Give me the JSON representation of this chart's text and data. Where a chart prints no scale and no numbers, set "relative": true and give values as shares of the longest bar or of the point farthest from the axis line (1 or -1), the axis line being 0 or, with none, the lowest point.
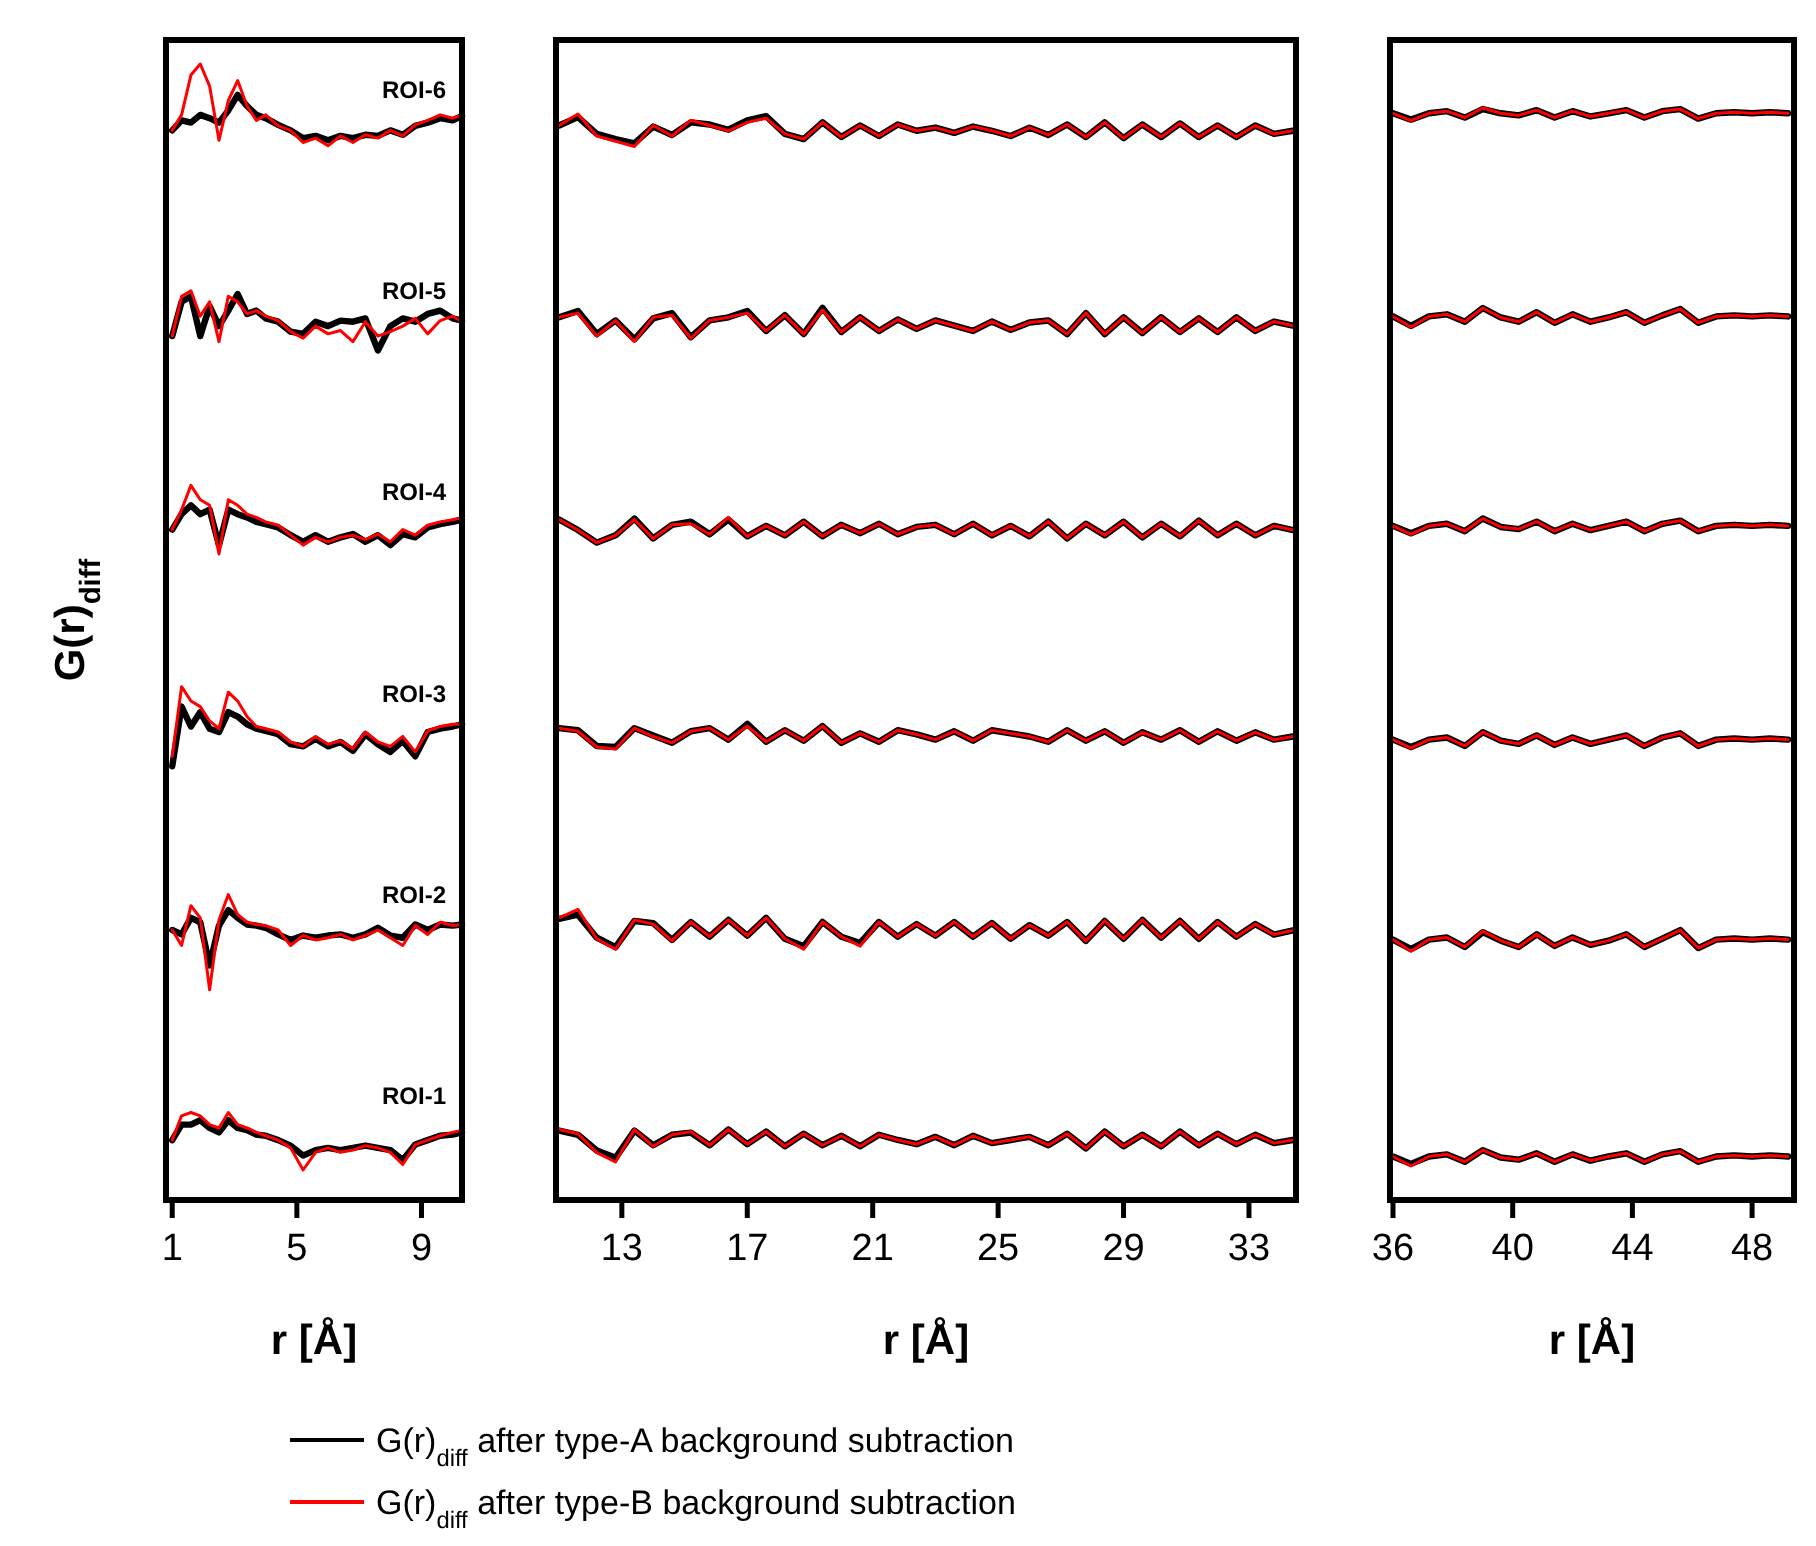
{
  "chart_data": [
    {
      "type": "line",
      "relative": true,
      "xlim": [
        0.8,
        10.3
      ],
      "xticks": [
        1,
        5,
        9
      ],
      "xlabel": "r [Å]",
      "ylabel": "G(r)$_{diff}$",
      "legend": "bottom",
      "x": [
        1,
        1.3,
        1.6,
        1.9,
        2.2,
        2.5,
        2.8,
        3.1,
        3.4,
        3.7,
        4.0,
        4.4,
        4.8,
        5.2,
        5.6,
        6.0,
        6.4,
        6.8,
        7.2,
        7.6,
        8.0,
        8.4,
        8.8,
        9.2,
        9.6,
        10.0,
        10.3
      ],
      "annotations": [
        "ROI-6",
        "ROI-5",
        "ROI-4",
        "ROI-3",
        "ROI-2",
        "ROI-1"
      ],
      "series": [
        {
          "name": "G(r)$_{diff}$ after type-A background subtraction",
          "color": "#000000",
          "values": [
            0.027,
            0.041,
            0.041,
            0.045,
            0.038,
            0.034,
            0.045,
            0.038,
            0.036,
            0.032,
            0.031,
            0.027,
            0.022,
            0.013,
            0.018,
            0.02,
            0.018,
            0.02,
            0.022,
            0.02,
            0.018,
            0.009,
            0.023,
            0.027,
            0.031,
            0.032,
            0.034
          ]
        },
        {
          "name": "G(r)$_{diff}$ after type-B background subtraction",
          "color": "#ff0000",
          "values": [
            0.027,
            0.049,
            0.052,
            0.049,
            0.041,
            0.038,
            0.052,
            0.041,
            0.038,
            0.034,
            0.031,
            0.027,
            0.02,
            0.0,
            0.016,
            0.02,
            0.016,
            0.018,
            0.022,
            0.02,
            0.016,
            0.005,
            0.023,
            0.027,
            0.031,
            0.034,
            0.036
          ]
        },
        {
          "color": "#000000",
          "values": [
            0.217,
            0.213,
            0.228,
            0.224,
            0.185,
            0.221,
            0.235,
            0.228,
            0.222,
            0.221,
            0.219,
            0.213,
            0.208,
            0.212,
            0.21,
            0.212,
            0.213,
            0.21,
            0.213,
            0.219,
            0.212,
            0.21,
            0.222,
            0.217,
            0.222,
            0.221,
            0.222
          ]
        },
        {
          "color": "#ff0000",
          "values": [
            0.217,
            0.203,
            0.239,
            0.228,
            0.163,
            0.226,
            0.249,
            0.231,
            0.224,
            0.222,
            0.221,
            0.217,
            0.203,
            0.212,
            0.208,
            0.21,
            0.213,
            0.208,
            0.212,
            0.217,
            0.21,
            0.203,
            0.221,
            0.213,
            0.224,
            0.221,
            0.222
          ]
        },
        {
          "color": "#000000",
          "values": [
            0.365,
            0.419,
            0.401,
            0.414,
            0.399,
            0.396,
            0.414,
            0.41,
            0.403,
            0.399,
            0.397,
            0.394,
            0.385,
            0.383,
            0.39,
            0.383,
            0.387,
            0.379,
            0.394,
            0.385,
            0.378,
            0.388,
            0.374,
            0.396,
            0.399,
            0.401,
            0.403
          ]
        },
        {
          "color": "#ff0000",
          "values": [
            0.374,
            0.437,
            0.424,
            0.419,
            0.406,
            0.399,
            0.432,
            0.424,
            0.41,
            0.401,
            0.399,
            0.396,
            0.387,
            0.383,
            0.392,
            0.385,
            0.388,
            0.381,
            0.396,
            0.387,
            0.383,
            0.392,
            0.378,
            0.397,
            0.401,
            0.403,
            0.403
          ]
        },
        {
          "color": "#000000",
          "values": [
            0.579,
            0.593,
            0.601,
            0.593,
            0.597,
            0.565,
            0.597,
            0.593,
            0.59,
            0.586,
            0.584,
            0.581,
            0.574,
            0.568,
            0.574,
            0.568,
            0.572,
            0.575,
            0.568,
            0.574,
            0.565,
            0.575,
            0.572,
            0.581,
            0.584,
            0.586,
            0.588
          ]
        },
        {
          "color": "#ff0000",
          "values": [
            0.579,
            0.597,
            0.619,
            0.606,
            0.601,
            0.557,
            0.606,
            0.601,
            0.593,
            0.59,
            0.586,
            0.583,
            0.574,
            0.565,
            0.572,
            0.568,
            0.572,
            0.574,
            0.57,
            0.575,
            0.568,
            0.579,
            0.574,
            0.583,
            0.586,
            0.588,
            0.59
          ]
        },
        {
          "color": "#000000",
          "values": [
            0.754,
            0.785,
            0.79,
            0.754,
            0.781,
            0.763,
            0.777,
            0.792,
            0.774,
            0.777,
            0.77,
            0.767,
            0.758,
            0.756,
            0.767,
            0.763,
            0.768,
            0.767,
            0.77,
            0.741,
            0.763,
            0.77,
            0.767,
            0.774,
            0.777,
            0.77,
            0.768
          ]
        },
        {
          "color": "#ff0000",
          "values": [
            0.754,
            0.79,
            0.795,
            0.772,
            0.785,
            0.749,
            0.79,
            0.785,
            0.774,
            0.777,
            0.772,
            0.768,
            0.758,
            0.752,
            0.763,
            0.756,
            0.759,
            0.749,
            0.767,
            0.754,
            0.758,
            0.763,
            0.77,
            0.756,
            0.768,
            0.772,
            0.767
          ]
        },
        {
          "color": "#000000",
          "values": [
            0.94,
            0.949,
            0.947,
            0.954,
            0.951,
            0.947,
            0.958,
            0.972,
            0.962,
            0.954,
            0.951,
            0.945,
            0.94,
            0.933,
            0.935,
            0.931,
            0.935,
            0.933,
            0.936,
            0.935,
            0.94,
            0.936,
            0.944,
            0.947,
            0.951,
            0.949,
            0.953
          ]
        },
        {
          "color": "#ff0000",
          "values": [
            0.94,
            0.954,
            0.99,
            1.0,
            0.98,
            0.931,
            0.967,
            0.985,
            0.962,
            0.949,
            0.954,
            0.944,
            0.94,
            0.929,
            0.933,
            0.926,
            0.935,
            0.929,
            0.936,
            0.933,
            0.94,
            0.935,
            0.945,
            0.949,
            0.954,
            0.951,
            0.954
          ]
        }
      ]
    },
    {
      "type": "line",
      "relative": true,
      "xlim": [
        10.9,
        34.5
      ],
      "xticks": [
        13,
        17,
        21,
        25,
        29,
        33
      ],
      "xlabel": "r [Å]",
      "x": [
        11.0,
        11.6,
        12.2,
        12.8,
        13.4,
        14.0,
        14.6,
        15.2,
        15.8,
        16.4,
        17.0,
        17.6,
        18.2,
        18.8,
        19.4,
        20.0,
        20.6,
        21.2,
        21.8,
        22.4,
        23.0,
        23.6,
        24.2,
        24.8,
        25.4,
        26.0,
        26.6,
        27.2,
        27.8,
        28.4,
        29.0,
        29.6,
        30.2,
        30.8,
        31.4,
        32.0,
        32.6,
        33.2,
        33.8,
        34.4
      ],
      "series": [
        {
          "color": "#000000",
          "values": [
            0.03,
            0.026,
            0.011,
            0.004,
            0.03,
            0.016,
            0.026,
            0.028,
            0.016,
            0.031,
            0.017,
            0.029,
            0.015,
            0.027,
            0.016,
            0.025,
            0.015,
            0.026,
            0.021,
            0.017,
            0.024,
            0.016,
            0.025,
            0.018,
            0.021,
            0.024,
            0.016,
            0.027,
            0.013,
            0.029,
            0.015,
            0.026,
            0.015,
            0.029,
            0.016,
            0.027,
            0.017,
            0.026,
            0.018,
            0.021
          ]
        },
        {
          "color": "#ff0000",
          "values": [
            0.031,
            0.027,
            0.009,
            0.0,
            0.031,
            0.015,
            0.026,
            0.029,
            0.016,
            0.031,
            0.017,
            0.029,
            0.015,
            0.027,
            0.016,
            0.025,
            0.015,
            0.026,
            0.021,
            0.017,
            0.024,
            0.016,
            0.025,
            0.018,
            0.021,
            0.024,
            0.016,
            0.027,
            0.013,
            0.029,
            0.015,
            0.026,
            0.015,
            0.029,
            0.016,
            0.027,
            0.017,
            0.026,
            0.018,
            0.021
          ]
        },
        {
          "color": "#000000",
          "values": [
            0.232,
            0.236,
            0.214,
            0.205,
            0.23,
            0.228,
            0.212,
            0.229,
            0.215,
            0.231,
            0.216,
            0.233,
            0.213,
            0.206,
            0.229,
            0.215,
            0.209,
            0.229,
            0.215,
            0.227,
            0.216,
            0.229,
            0.215,
            0.228,
            0.213,
            0.226,
            0.216,
            0.229,
            0.211,
            0.23,
            0.213,
            0.231,
            0.214,
            0.23,
            0.213,
            0.229,
            0.215,
            0.227,
            0.217,
            0.221
          ]
        },
        {
          "color": "#ff0000",
          "values": [
            0.233,
            0.241,
            0.213,
            0.203,
            0.231,
            0.227,
            0.211,
            0.229,
            0.215,
            0.231,
            0.216,
            0.233,
            0.213,
            0.203,
            0.229,
            0.215,
            0.206,
            0.229,
            0.215,
            0.227,
            0.216,
            0.229,
            0.215,
            0.228,
            0.213,
            0.226,
            0.216,
            0.229,
            0.211,
            0.23,
            0.213,
            0.231,
            0.214,
            0.23,
            0.213,
            0.229,
            0.215,
            0.227,
            0.217,
            0.221
          ]
        },
        {
          "color": "#000000",
          "values": [
            0.414,
            0.412,
            0.397,
            0.396,
            0.414,
            0.407,
            0.4,
            0.411,
            0.414,
            0.403,
            0.418,
            0.401,
            0.412,
            0.402,
            0.416,
            0.4,
            0.409,
            0.401,
            0.412,
            0.408,
            0.403,
            0.411,
            0.402,
            0.412,
            0.409,
            0.406,
            0.401,
            0.412,
            0.402,
            0.411,
            0.4,
            0.41,
            0.403,
            0.412,
            0.401,
            0.411,
            0.402,
            0.41,
            0.403,
            0.406
          ]
        },
        {
          "color": "#ff0000",
          "values": [
            0.414,
            0.411,
            0.396,
            0.394,
            0.414,
            0.406,
            0.4,
            0.411,
            0.414,
            0.403,
            0.416,
            0.401,
            0.412,
            0.402,
            0.416,
            0.4,
            0.409,
            0.401,
            0.412,
            0.408,
            0.403,
            0.411,
            0.402,
            0.412,
            0.409,
            0.406,
            0.401,
            0.412,
            0.402,
            0.411,
            0.4,
            0.41,
            0.403,
            0.412,
            0.401,
            0.411,
            0.402,
            0.41,
            0.403,
            0.406
          ]
        },
        {
          "color": "#000000",
          "values": [
            0.613,
            0.603,
            0.591,
            0.598,
            0.614,
            0.595,
            0.608,
            0.611,
            0.599,
            0.613,
            0.597,
            0.607,
            0.598,
            0.611,
            0.597,
            0.608,
            0.6,
            0.609,
            0.599,
            0.606,
            0.608,
            0.599,
            0.609,
            0.598,
            0.607,
            0.597,
            0.611,
            0.595,
            0.609,
            0.598,
            0.611,
            0.596,
            0.609,
            0.597,
            0.612,
            0.598,
            0.609,
            0.598,
            0.607,
            0.603
          ]
        },
        {
          "color": "#ff0000",
          "values": [
            0.613,
            0.603,
            0.591,
            0.598,
            0.613,
            0.595,
            0.608,
            0.609,
            0.599,
            0.615,
            0.597,
            0.607,
            0.598,
            0.611,
            0.597,
            0.608,
            0.6,
            0.609,
            0.599,
            0.606,
            0.608,
            0.599,
            0.609,
            0.598,
            0.607,
            0.597,
            0.611,
            0.595,
            0.609,
            0.598,
            0.611,
            0.596,
            0.609,
            0.597,
            0.612,
            0.598,
            0.609,
            0.598,
            0.607,
            0.603
          ]
        },
        {
          "color": "#000000",
          "values": [
            0.806,
            0.812,
            0.79,
            0.803,
            0.785,
            0.805,
            0.81,
            0.787,
            0.803,
            0.806,
            0.812,
            0.793,
            0.808,
            0.79,
            0.815,
            0.792,
            0.806,
            0.793,
            0.804,
            0.795,
            0.803,
            0.798,
            0.793,
            0.802,
            0.794,
            0.801,
            0.803,
            0.79,
            0.81,
            0.79,
            0.806,
            0.791,
            0.806,
            0.792,
            0.805,
            0.792,
            0.806,
            0.793,
            0.802,
            0.798
          ]
        },
        {
          "color": "#ff0000",
          "values": [
            0.806,
            0.81,
            0.788,
            0.803,
            0.783,
            0.806,
            0.808,
            0.786,
            0.803,
            0.806,
            0.81,
            0.793,
            0.808,
            0.79,
            0.813,
            0.792,
            0.806,
            0.793,
            0.804,
            0.795,
            0.803,
            0.798,
            0.793,
            0.802,
            0.794,
            0.801,
            0.803,
            0.79,
            0.81,
            0.79,
            0.806,
            0.791,
            0.806,
            0.792,
            0.805,
            0.792,
            0.806,
            0.793,
            0.802,
            0.798
          ]
        },
        {
          "color": "#000000",
          "values": [
            0.989,
            0.997,
            0.981,
            0.976,
            0.972,
            0.988,
            0.98,
            0.992,
            0.99,
            0.985,
            0.994,
            0.998,
            0.981,
            0.976,
            0.992,
            0.978,
            0.989,
            0.979,
            0.99,
            0.984,
            0.987,
            0.982,
            0.988,
            0.984,
            0.979,
            0.987,
            0.98,
            0.99,
            0.978,
            0.992,
            0.977,
            0.99,
            0.978,
            0.991,
            0.978,
            0.989,
            0.978,
            0.989,
            0.981,
            0.984
          ]
        },
        {
          "color": "#ff0000",
          "values": [
            0.989,
            1.0,
            0.979,
            0.974,
            0.969,
            0.989,
            0.979,
            0.994,
            0.989,
            0.984,
            0.992,
            0.996,
            0.981,
            0.976,
            0.992,
            0.978,
            0.989,
            0.979,
            0.99,
            0.984,
            0.987,
            0.982,
            0.988,
            0.984,
            0.979,
            0.987,
            0.98,
            0.99,
            0.978,
            0.992,
            0.977,
            0.99,
            0.978,
            0.991,
            0.978,
            0.989,
            0.978,
            0.989,
            0.981,
            0.984
          ]
        }
      ]
    },
    {
      "type": "line",
      "relative": true,
      "xlim": [
        35.9,
        49.4
      ],
      "xticks": [
        36,
        40,
        44,
        48
      ],
      "xlabel": "r [Å]",
      "x": [
        36.0,
        36.6,
        37.2,
        37.8,
        38.4,
        39.0,
        39.6,
        40.2,
        40.8,
        41.4,
        42.0,
        42.6,
        43.2,
        43.8,
        44.4,
        45.0,
        45.6,
        46.2,
        46.8,
        47.4,
        48.0,
        48.6,
        49.2
      ],
      "series": [
        {
          "color": "#000000",
          "values": [
            0.009,
            0.002,
            0.009,
            0.011,
            0.004,
            0.015,
            0.008,
            0.006,
            0.012,
            0.004,
            0.011,
            0.005,
            0.009,
            0.012,
            0.004,
            0.011,
            0.014,
            0.004,
            0.009,
            0.01,
            0.009,
            0.01,
            0.009
          ]
        },
        {
          "color": "#ff0000",
          "values": [
            0.009,
            0.0,
            0.009,
            0.011,
            0.004,
            0.015,
            0.008,
            0.006,
            0.012,
            0.004,
            0.011,
            0.005,
            0.009,
            0.012,
            0.004,
            0.011,
            0.014,
            0.004,
            0.009,
            0.01,
            0.009,
            0.01,
            0.009
          ]
        },
        {
          "color": "#000000",
          "values": [
            0.214,
            0.205,
            0.214,
            0.216,
            0.207,
            0.221,
            0.213,
            0.207,
            0.219,
            0.208,
            0.216,
            0.209,
            0.213,
            0.219,
            0.207,
            0.215,
            0.223,
            0.206,
            0.214,
            0.215,
            0.214,
            0.215,
            0.214
          ]
        },
        {
          "color": "#ff0000",
          "values": [
            0.214,
            0.203,
            0.214,
            0.216,
            0.207,
            0.222,
            0.213,
            0.207,
            0.219,
            0.208,
            0.216,
            0.209,
            0.213,
            0.219,
            0.207,
            0.215,
            0.223,
            0.206,
            0.214,
            0.215,
            0.214,
            0.215,
            0.214
          ]
        },
        {
          "color": "#000000",
          "values": [
            0.403,
            0.396,
            0.403,
            0.405,
            0.397,
            0.41,
            0.402,
            0.399,
            0.407,
            0.398,
            0.405,
            0.399,
            0.403,
            0.407,
            0.397,
            0.405,
            0.409,
            0.397,
            0.403,
            0.404,
            0.403,
            0.404,
            0.403
          ]
        },
        {
          "color": "#ff0000",
          "values": [
            0.403,
            0.395,
            0.403,
            0.405,
            0.397,
            0.41,
            0.402,
            0.399,
            0.407,
            0.398,
            0.405,
            0.399,
            0.403,
            0.407,
            0.397,
            0.405,
            0.409,
            0.397,
            0.403,
            0.404,
            0.403,
            0.404,
            0.403
          ]
        },
        {
          "color": "#000000",
          "values": [
            0.605,
            0.598,
            0.605,
            0.607,
            0.6,
            0.612,
            0.604,
            0.602,
            0.609,
            0.6,
            0.607,
            0.601,
            0.605,
            0.609,
            0.6,
            0.607,
            0.61,
            0.6,
            0.605,
            0.606,
            0.605,
            0.606,
            0.605
          ]
        },
        {
          "color": "#ff0000",
          "values": [
            0.605,
            0.597,
            0.605,
            0.607,
            0.6,
            0.612,
            0.604,
            0.602,
            0.609,
            0.6,
            0.607,
            0.601,
            0.605,
            0.609,
            0.6,
            0.607,
            0.61,
            0.6,
            0.605,
            0.606,
            0.605,
            0.606,
            0.605
          ]
        },
        {
          "color": "#000000",
          "values": [
            0.803,
            0.794,
            0.803,
            0.805,
            0.798,
            0.811,
            0.802,
            0.798,
            0.807,
            0.797,
            0.805,
            0.798,
            0.802,
            0.807,
            0.797,
            0.804,
            0.81,
            0.797,
            0.803,
            0.804,
            0.803,
            0.804,
            0.803
          ]
        },
        {
          "color": "#ff0000",
          "values": [
            0.803,
            0.793,
            0.803,
            0.805,
            0.798,
            0.811,
            0.802,
            0.798,
            0.807,
            0.797,
            0.805,
            0.798,
            0.802,
            0.807,
            0.797,
            0.804,
            0.81,
            0.797,
            0.803,
            0.804,
            0.803,
            0.804,
            0.803
          ]
        },
        {
          "color": "#000000",
          "values": [
            0.995,
            0.989,
            0.995,
            0.997,
            0.991,
            0.999,
            0.995,
            0.993,
            0.998,
            0.991,
            0.997,
            0.992,
            0.995,
            0.998,
            0.991,
            0.997,
            0.999,
            0.99,
            0.995,
            0.996,
            0.995,
            0.996,
            0.995
          ]
        },
        {
          "color": "#ff0000",
          "values": [
            0.995,
            0.988,
            0.995,
            0.997,
            0.991,
            1.0,
            0.995,
            0.993,
            0.998,
            0.991,
            0.997,
            0.992,
            0.995,
            0.998,
            0.991,
            0.997,
            0.999,
            0.99,
            0.995,
            0.996,
            0.995,
            0.996,
            0.995
          ]
        }
      ]
    }
  ]
}
